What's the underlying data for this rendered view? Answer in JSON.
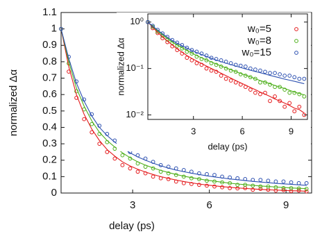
{
  "chart_data": {
    "type": "scatter",
    "xlabel": "delay (ps)",
    "ylabel": "normalized Δα",
    "x": [
      0.2,
      0.5,
      0.8,
      1.1,
      1.4,
      1.7,
      2.0,
      2.3,
      2.6,
      2.9,
      3.2,
      3.5,
      3.8,
      4.1,
      4.4,
      4.7,
      5.0,
      5.3,
      5.6,
      5.9,
      6.2,
      6.5,
      6.8,
      7.1,
      7.4,
      7.7,
      8.0,
      8.3,
      8.6,
      8.9,
      9.2,
      9.5,
      9.8
    ],
    "xlim": [
      0.2,
      10
    ],
    "xticks": [
      3,
      6,
      9
    ],
    "ylim": [
      0,
      1.1
    ],
    "yticks": [
      0,
      0.1,
      0.2,
      0.3,
      0.4,
      0.5,
      0.6,
      0.7,
      0.8,
      0.9,
      1,
      1.1
    ],
    "legend": "upper right",
    "series": [
      {
        "name": "w₀=5",
        "color": "#e41a1c",
        "values": [
          1,
          0.74,
          0.58,
          0.45,
          0.37,
          0.3,
          0.25,
          0.21,
          0.17,
          0.15,
          0.13,
          0.12,
          0.1,
          0.09,
          0.085,
          0.07,
          0.06,
          0.055,
          0.05,
          0.045,
          0.04,
          0.035,
          0.03,
          0.028,
          0.03,
          0.02,
          0.025,
          0.02,
          0.015,
          0.018,
          0.012,
          0.015,
          0.01
        ],
        "fit": [
          1,
          0.77,
          0.6,
          0.48,
          0.39,
          0.32,
          0.265,
          0.225,
          0.19,
          0.165,
          0.145,
          0.128,
          0.113,
          0.1,
          0.089,
          0.079,
          0.07,
          0.062,
          0.055,
          0.049,
          0.044,
          0.039,
          0.035,
          0.031,
          0.028,
          0.025,
          0.022,
          0.02,
          0.018,
          0.016,
          0.014,
          0.013,
          0.011
        ]
      },
      {
        "name": "w₀=8",
        "color": "#4daf1a",
        "values": [
          1,
          0.79,
          0.62,
          0.51,
          0.42,
          0.36,
          0.31,
          0.27,
          0.23,
          0.21,
          0.18,
          0.16,
          0.15,
          0.13,
          0.12,
          0.11,
          0.1,
          0.09,
          0.085,
          0.075,
          0.07,
          0.065,
          0.06,
          0.05,
          0.05,
          0.045,
          0.04,
          0.04,
          0.035,
          0.03,
          0.03,
          0.028,
          0.025
        ],
        "fit": [
          1,
          0.8,
          0.64,
          0.53,
          0.44,
          0.37,
          0.32,
          0.28,
          0.245,
          0.215,
          0.19,
          0.17,
          0.153,
          0.138,
          0.125,
          0.113,
          0.103,
          0.094,
          0.086,
          0.078,
          0.072,
          0.066,
          0.06,
          0.055,
          0.051,
          0.047,
          0.043,
          0.04,
          0.037,
          0.034,
          0.031,
          0.029,
          0.027
        ]
      },
      {
        "name": "w₀=15",
        "color": "#2b4fb0",
        "values": [
          1,
          0.83,
          0.68,
          0.57,
          0.48,
          0.41,
          0.36,
          0.32,
          0.28,
          0.25,
          0.23,
          0.21,
          0.19,
          0.17,
          0.16,
          0.15,
          0.14,
          0.13,
          0.12,
          0.115,
          0.11,
          0.1,
          0.095,
          0.09,
          0.085,
          0.08,
          0.08,
          0.075,
          0.07,
          0.07,
          0.065,
          0.06,
          0.06
        ],
        "fit": [
          1,
          0.82,
          0.67,
          0.56,
          0.47,
          0.4,
          0.35,
          0.31,
          0.275,
          0.245,
          0.22,
          0.2,
          0.182,
          0.166,
          0.152,
          0.14,
          0.13,
          0.121,
          0.113,
          0.105,
          0.098,
          0.092,
          0.086,
          0.081,
          0.076,
          0.071,
          0.067,
          0.063,
          0.059,
          0.056,
          0.053,
          0.05,
          0.047
        ]
      }
    ],
    "inset": {
      "xlabel": "delay (ps)",
      "ylabel": "normalized Δα",
      "xlim": [
        0.2,
        10
      ],
      "xticks": [
        3,
        6,
        9
      ],
      "log_y": true,
      "ylim": [
        0.008,
        1.5
      ],
      "yticks": [
        {
          "value": 1,
          "label": "10⁰"
        },
        {
          "value": 0.1,
          "label": "10⁻¹"
        },
        {
          "value": 0.01,
          "label": "10⁻²"
        }
      ]
    }
  }
}
